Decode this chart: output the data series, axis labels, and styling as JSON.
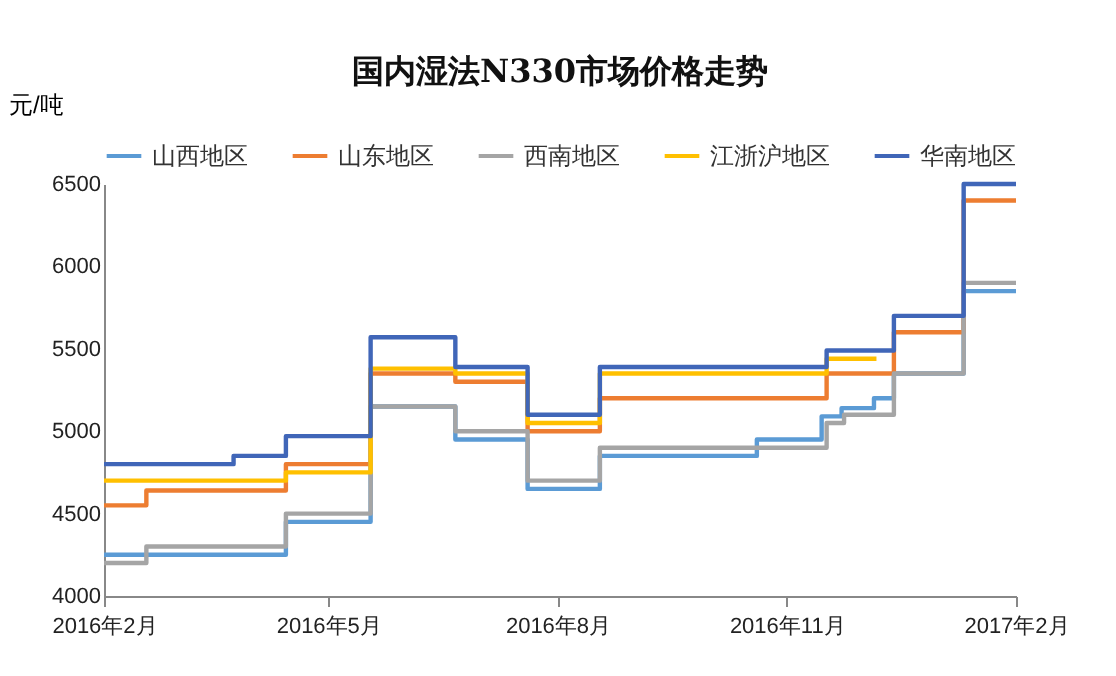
{
  "chart_data": {
    "type": "step",
    "title": "国内湿法N330市场价格走势",
    "ylabel": "元/吨",
    "ylim": [
      4000,
      6500
    ],
    "yticks": [
      4000,
      4500,
      5000,
      5500,
      6000,
      6500
    ],
    "xlim": [
      "2016-02-01",
      "2017-02-01"
    ],
    "xticks": [
      {
        "value": "2016-02-01",
        "label": "2016年2月"
      },
      {
        "value": "2016-05-01",
        "label": "2016年5月"
      },
      {
        "value": "2016-08-01",
        "label": "2016年8月"
      },
      {
        "value": "2016-11-01",
        "label": "2016年11月"
      },
      {
        "value": "2017-02-01",
        "label": "2017年2月"
      }
    ],
    "grid": false,
    "legend": "top",
    "marker": "none",
    "line_style": "solid",
    "series": [
      {
        "name": "山西地区",
        "color": "#5b9bd5",
        "x": [
          "2016-02-01",
          "2016-04-06",
          "2016-04-14",
          "2016-05-11",
          "2016-05-18",
          "2016-06-15",
          "2016-06-21",
          "2016-07-12",
          "2016-07-20",
          "2016-08-11",
          "2016-08-18",
          "2016-10-07",
          "2016-10-20",
          "2016-10-28",
          "2016-11-15",
          "2016-11-23",
          "2016-12-01",
          "2016-12-06",
          "2016-12-14",
          "2017-01-03",
          "2017-01-11",
          "2017-02-01"
        ],
        "values": [
          4250,
          4250,
          4450,
          4450,
          5150,
          5150,
          4950,
          4950,
          4650,
          4650,
          4850,
          4850,
          4950,
          4950,
          5090,
          5140,
          5140,
          5200,
          5350,
          5350,
          5850,
          5850
        ]
      },
      {
        "name": "山东地区",
        "color": "#ed7d31",
        "x": [
          "2016-02-01",
          "2016-02-12",
          "2016-02-18",
          "2016-04-06",
          "2016-04-14",
          "2016-05-11",
          "2016-05-18",
          "2016-06-15",
          "2016-06-21",
          "2016-07-12",
          "2016-07-20",
          "2016-08-11",
          "2016-08-18",
          "2016-11-11",
          "2016-11-17",
          "2016-12-07",
          "2016-12-14",
          "2017-01-03",
          "2017-01-11",
          "2017-02-01"
        ],
        "values": [
          4550,
          4550,
          4640,
          4640,
          4800,
          4800,
          5350,
          5350,
          5300,
          5300,
          5000,
          5000,
          5200,
          5200,
          5350,
          5350,
          5600,
          5600,
          6400,
          6400
        ]
      },
      {
        "name": "西南地区",
        "color": "#a5a5a5",
        "x": [
          "2016-02-01",
          "2016-02-12",
          "2016-02-18",
          "2016-04-06",
          "2016-04-14",
          "2016-05-11",
          "2016-05-18",
          "2016-06-15",
          "2016-06-21",
          "2016-07-12",
          "2016-07-20",
          "2016-08-11",
          "2016-08-18",
          "2016-11-11",
          "2016-11-17",
          "2016-11-24",
          "2016-12-07",
          "2016-12-14",
          "2017-01-03",
          "2017-01-11",
          "2017-02-01"
        ],
        "values": [
          4200,
          4200,
          4300,
          4300,
          4500,
          4500,
          5150,
          5150,
          5000,
          5000,
          4700,
          4700,
          4900,
          4900,
          5050,
          5100,
          5100,
          5350,
          5350,
          5900,
          5900
        ]
      },
      {
        "name": "江浙沪地区",
        "color": "#ffc000",
        "x": [
          "2016-02-01",
          "2016-04-06",
          "2016-04-14",
          "2016-05-11",
          "2016-05-18",
          "2016-06-15",
          "2016-06-21",
          "2016-07-12",
          "2016-07-20",
          "2016-08-11",
          "2016-08-18",
          "2016-11-11",
          "2016-11-17",
          "2016-12-07"
        ],
        "values": [
          4700,
          4700,
          4750,
          4750,
          5380,
          5380,
          5350,
          5350,
          5050,
          5050,
          5350,
          5350,
          5440,
          5440
        ]
      },
      {
        "name": "华南地区",
        "color": "#4066b8",
        "x": [
          "2016-02-01",
          "2016-03-17",
          "2016-03-24",
          "2016-04-06",
          "2016-04-14",
          "2016-05-11",
          "2016-05-18",
          "2016-06-15",
          "2016-06-21",
          "2016-07-12",
          "2016-07-20",
          "2016-08-11",
          "2016-08-18",
          "2016-11-11",
          "2016-11-17",
          "2016-12-07",
          "2016-12-14",
          "2017-01-03",
          "2017-01-11",
          "2017-02-01"
        ],
        "values": [
          4800,
          4800,
          4850,
          4850,
          4970,
          4970,
          5570,
          5570,
          5390,
          5390,
          5100,
          5100,
          5390,
          5390,
          5490,
          5490,
          5700,
          5700,
          6500,
          6500
        ]
      }
    ]
  }
}
